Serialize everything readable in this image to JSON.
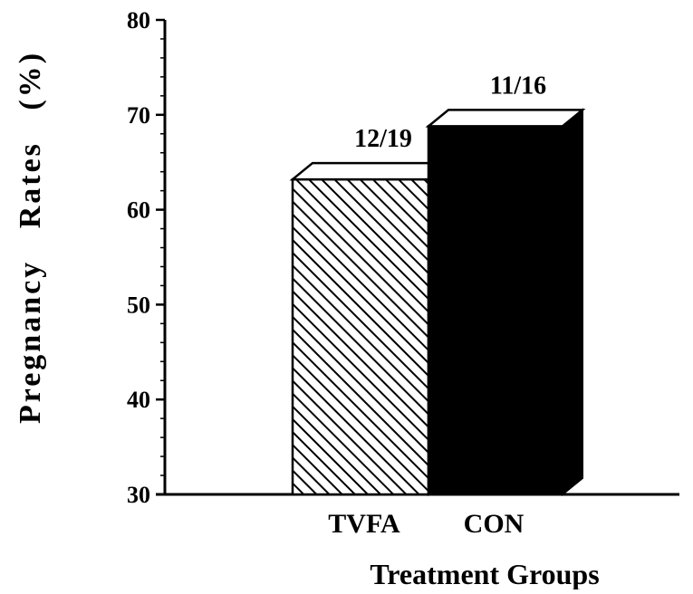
{
  "chart_data": {
    "type": "bar",
    "categories": [
      "TVFA",
      "CON"
    ],
    "values": [
      63.2,
      68.8
    ],
    "data_labels": [
      "12/19",
      "11/16"
    ],
    "title": "",
    "xlabel": "Treatment Groups",
    "ylabel": "Pregnancy   Rates   (%)",
    "ylim": [
      30,
      80
    ],
    "yticks": [
      "30",
      "40",
      "50",
      "60",
      "70",
      "80"
    ],
    "grid": false,
    "bar_styles": [
      "hatched",
      "solid"
    ],
    "colors": {
      "bar_top": "#ffffff",
      "bar_fill": "#000000",
      "hatch": "#000000"
    }
  }
}
